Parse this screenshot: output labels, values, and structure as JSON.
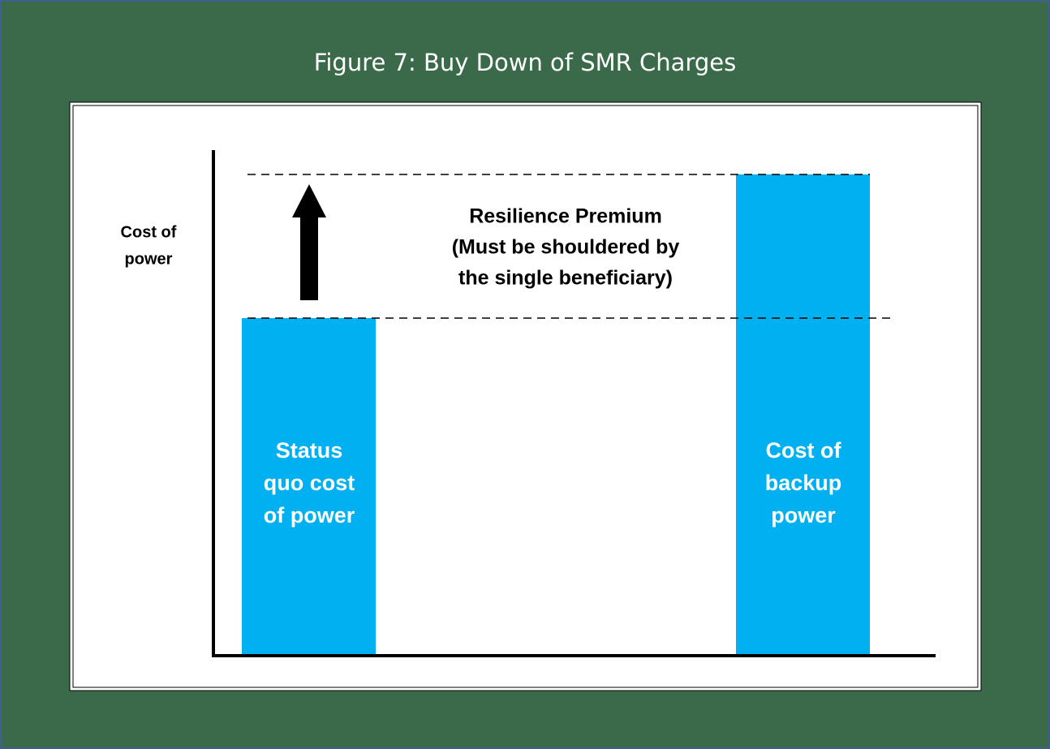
{
  "title": "Figure 7: Buy Down of SMR Charges",
  "y_axis_label": [
    "Cost of",
    "power"
  ],
  "annotation": [
    "Resilience Premium",
    "(Must be shouldered by",
    "the single beneficiary)"
  ],
  "bars": [
    {
      "label": [
        "Status",
        "quo cost",
        "of power"
      ]
    },
    {
      "label": [
        "Cost of",
        "backup",
        "power"
      ]
    }
  ]
}
